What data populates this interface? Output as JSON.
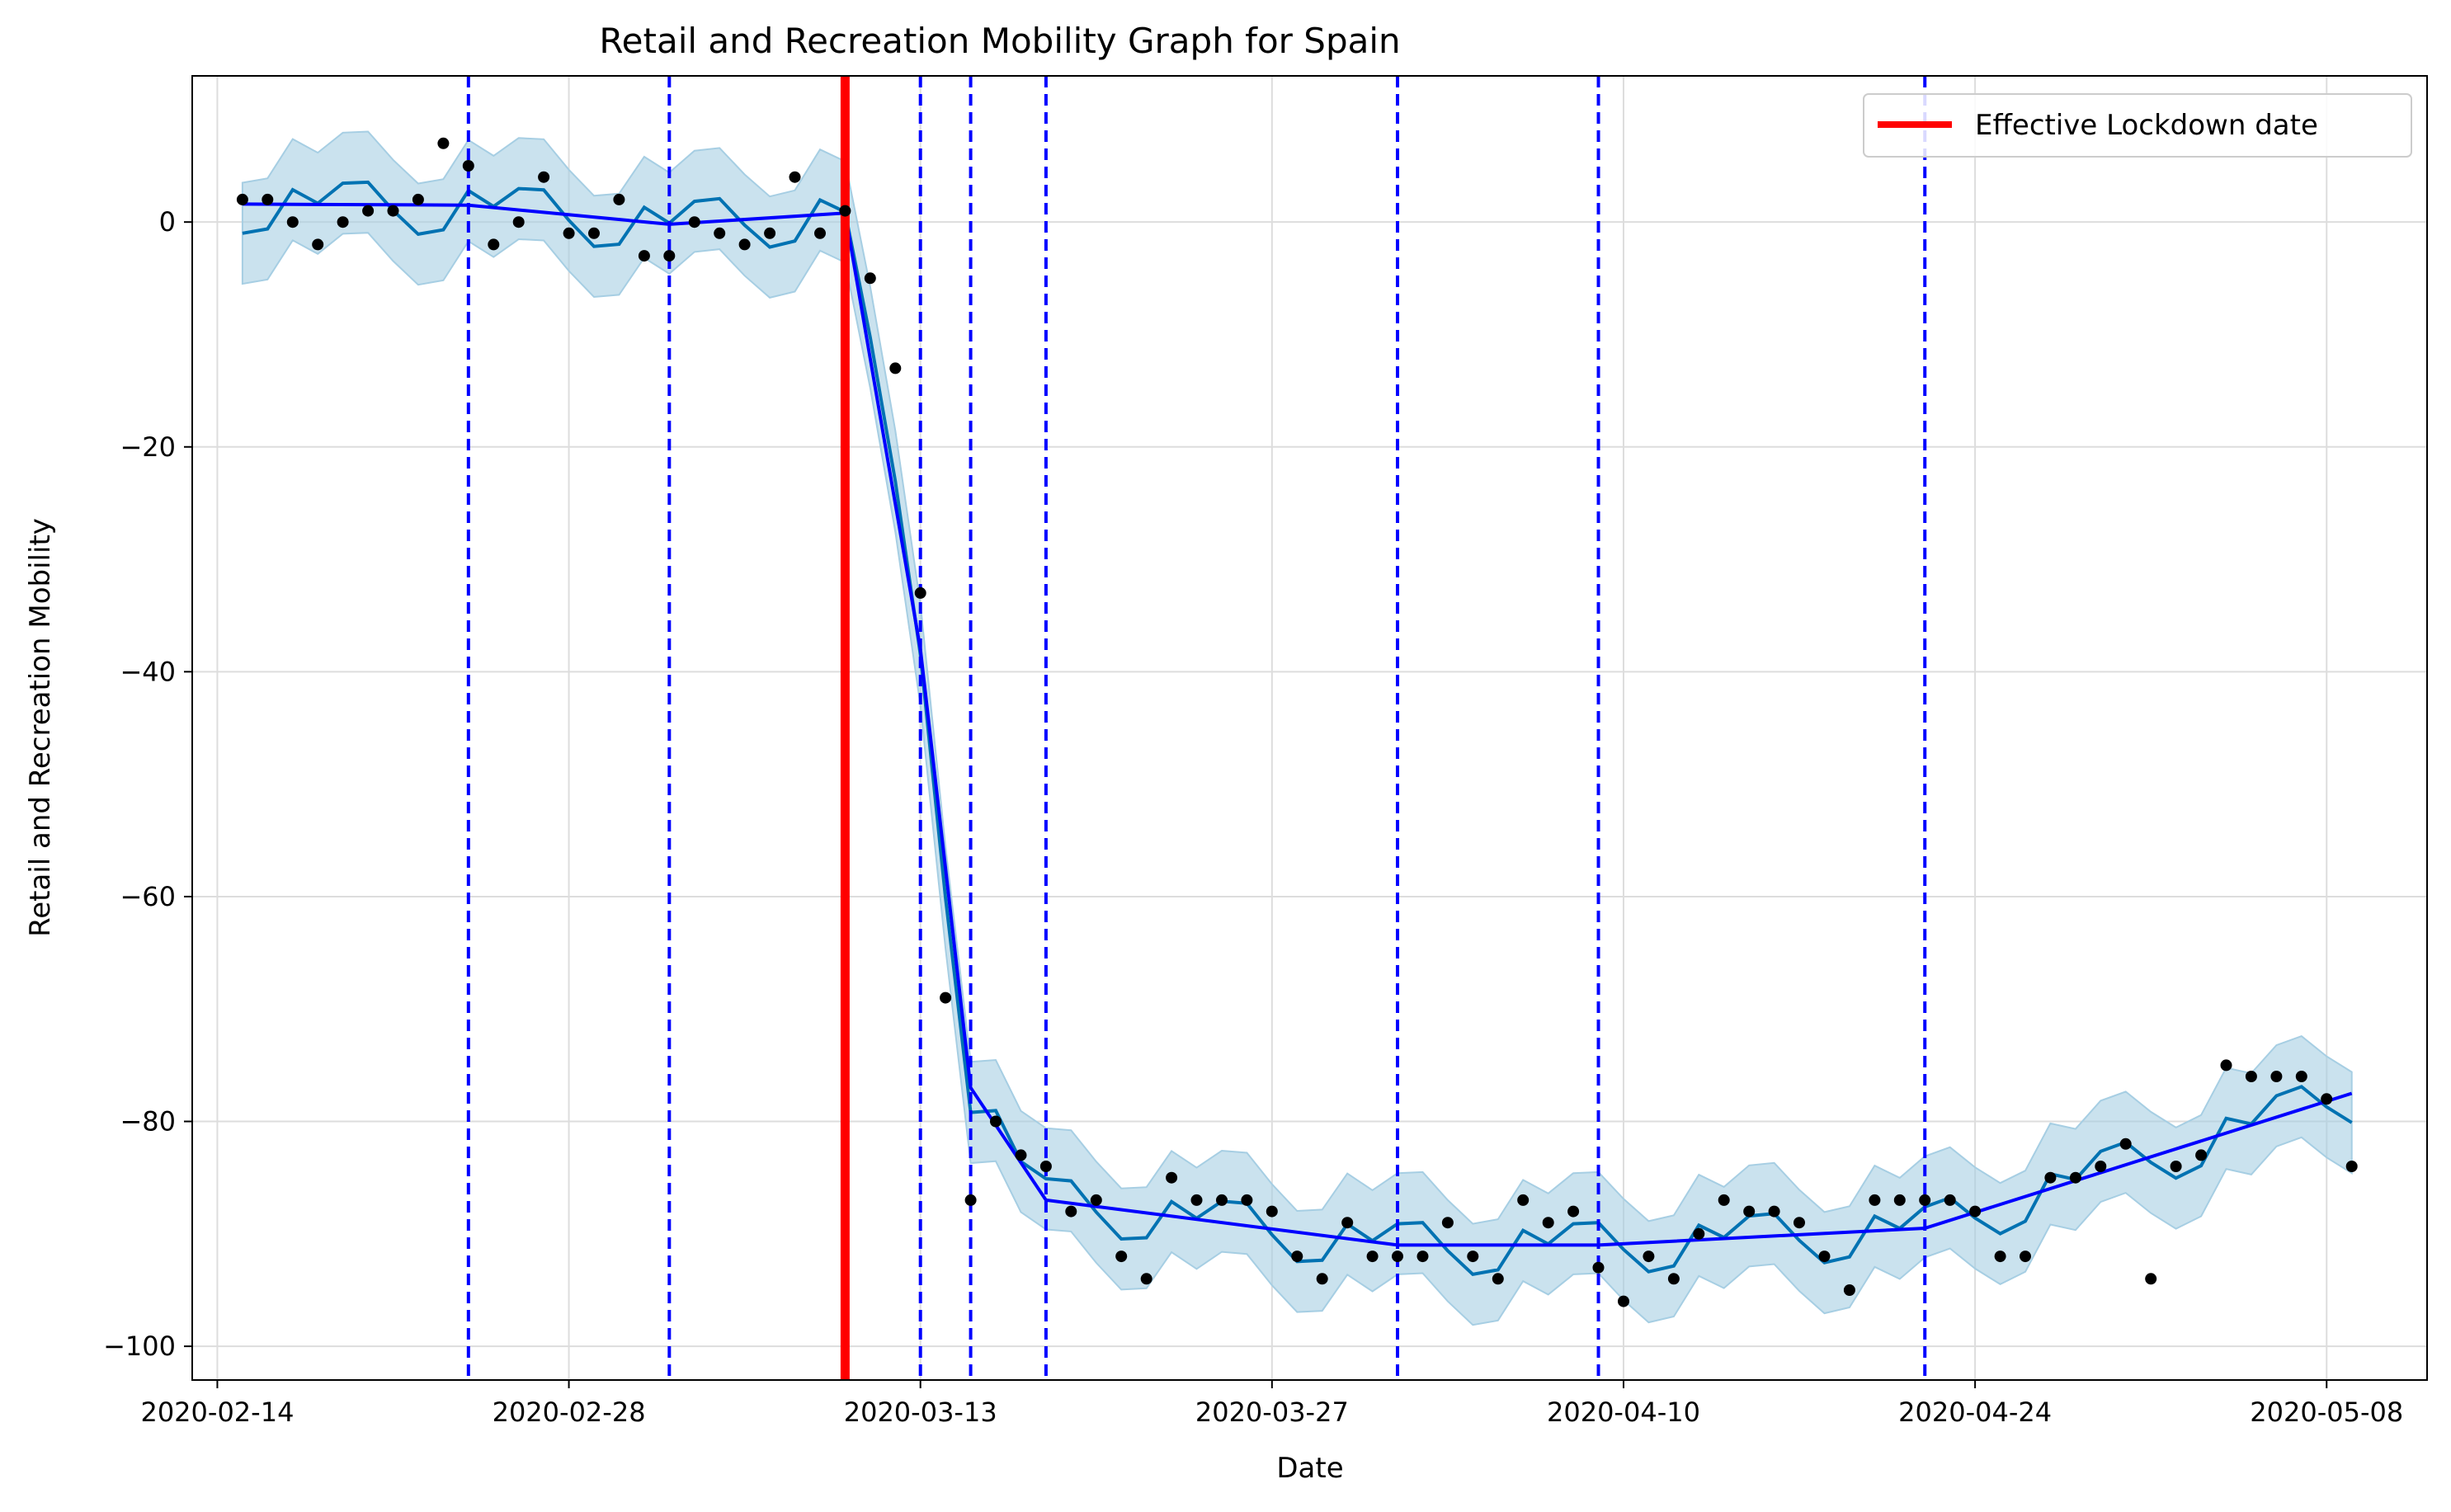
{
  "chart_data": {
    "type": "line",
    "title": "Retail and Recreation Mobility Graph for Spain",
    "xlabel": "Date",
    "ylabel": "Retail and Recreation Mobility",
    "x_start": "2020-02-15",
    "xlim": [
      "2020-02-13",
      "2020-05-12"
    ],
    "ylim": [
      -103,
      13
    ],
    "x_ticks": [
      "2020-02-14",
      "2020-02-28",
      "2020-03-13",
      "2020-03-27",
      "2020-04-10",
      "2020-04-24",
      "2020-05-08"
    ],
    "y_ticks": [
      0,
      -20,
      -40,
      -60,
      -80,
      -100
    ],
    "y_tick_labels": [
      "0",
      "−20",
      "−40",
      "−60",
      "−80",
      "−100"
    ],
    "grid": true,
    "legend_position": "top-right",
    "legend": [
      {
        "label": "Effective Lockdown date",
        "color": "#ff0000"
      }
    ],
    "lockdown_date": "2020-03-10",
    "changepoints": [
      "2020-02-24",
      "2020-03-03",
      "2020-03-13",
      "2020-03-15",
      "2020-03-18",
      "2020-04-01",
      "2020-04-09",
      "2020-04-22"
    ],
    "observed": [
      2,
      2,
      0,
      -2,
      0,
      1,
      1,
      2,
      7,
      5,
      -2,
      0,
      4,
      -1,
      -1,
      2,
      -3,
      -3,
      0,
      -1,
      -2,
      -1,
      4,
      -1,
      1,
      -5,
      -13,
      -33,
      -69,
      -87,
      -80,
      -83,
      -84,
      -88,
      -87,
      -92,
      -94,
      -85,
      -87,
      -87,
      -87,
      -88,
      -92,
      -94,
      -89,
      -92,
      -92,
      -92,
      -89,
      -92,
      -94,
      -87,
      -89,
      -88,
      -93,
      -96,
      -92,
      -94,
      -90,
      -87,
      -88,
      -88,
      -89,
      -92,
      -95,
      -87,
      -87,
      -87,
      -87,
      -88,
      -92,
      -92,
      -85,
      -85,
      -84,
      -82,
      -94,
      -84,
      -83,
      -75,
      -76,
      -76,
      -76,
      -78,
      -84
    ],
    "trend_dates": [
      "2020-02-15",
      "2020-02-24",
      "2020-03-03",
      "2020-03-10",
      "2020-03-13",
      "2020-03-15",
      "2020-03-18",
      "2020-04-01",
      "2020-04-09",
      "2020-04-22",
      "2020-05-09"
    ],
    "trend_values": [
      1.6,
      1.5,
      -0.2,
      0.8,
      -38.0,
      -77.0,
      -87.0,
      -91.0,
      -91.0,
      -89.5,
      -77.5
    ],
    "weekly": [
      -2.6,
      -2.2,
      1.3,
      0.1,
      1.9,
      2.0,
      -0.5
    ],
    "interval_half_width": 4.5,
    "colors": {
      "observed": "#000000",
      "trend": "#0000ff",
      "forecast": "#0072b2",
      "interval": "#a6cee3",
      "changepoint": "#0000ff",
      "lockdown": "#ff0000",
      "grid": "#dddddd"
    }
  }
}
